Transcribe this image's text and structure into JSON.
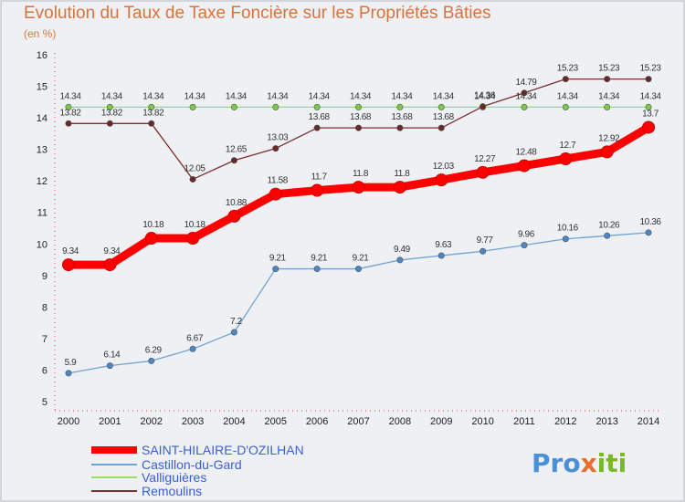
{
  "title": "Evolution du Taux de Taxe Foncière sur les Propriétés Bâties",
  "subtitle": "(en %)",
  "logo": {
    "part1": "Pro",
    "part2": "x",
    "part3": "iti"
  },
  "chart_data": {
    "type": "line",
    "x": [
      "2000",
      "2001",
      "2002",
      "2003",
      "2004",
      "2005",
      "2006",
      "2007",
      "2008",
      "2009",
      "2010",
      "2011",
      "2012",
      "2013",
      "2014"
    ],
    "ylim": [
      5,
      16
    ],
    "yticks": [
      5,
      6,
      7,
      8,
      9,
      10,
      11,
      12,
      13,
      14,
      15,
      16
    ],
    "grid": false,
    "legend_position": "bottom-left",
    "series": [
      {
        "name": "SAINT-HILAIRE-D'OZILHAN",
        "color": "#ff0000",
        "style": "thick",
        "values": [
          9.34,
          9.34,
          10.18,
          10.18,
          10.88,
          11.58,
          11.7,
          11.8,
          11.8,
          12.03,
          12.27,
          12.48,
          12.7,
          12.92,
          13.7
        ],
        "labels": [
          "9.34",
          "9.34",
          "10.18",
          "10.18",
          "10.88",
          "11.58",
          "11.7",
          "11.8",
          "11.8",
          "12.03",
          "12.27",
          "12.48",
          "12.7",
          "12.92",
          "13.7"
        ]
      },
      {
        "name": "Castillon-du-Gard",
        "color": "#6fa3d4",
        "marker": "#4a86c8",
        "values": [
          5.9,
          6.14,
          6.29,
          6.67,
          7.2,
          9.21,
          9.21,
          9.21,
          9.49,
          9.63,
          9.77,
          9.96,
          10.16,
          10.26,
          10.36
        ],
        "labels": [
          "5.9",
          "6.14",
          "6.29",
          "6.67",
          "7.2",
          "9.21",
          "9.21",
          "9.21",
          "9.49",
          "9.63",
          "9.77",
          "9.96",
          "10.16",
          "10.26",
          "10.36"
        ]
      },
      {
        "name": "Valliguières",
        "color": "#99dd66",
        "marker": "#77cc44",
        "values": [
          14.34,
          14.34,
          14.34,
          14.34,
          14.34,
          14.34,
          14.34,
          14.34,
          14.34,
          14.34,
          14.34,
          14.34,
          14.34,
          14.34,
          14.34
        ],
        "labels": [
          "14.34",
          "14.34",
          "14.34",
          "14.34",
          "14.34",
          "14.34",
          "14.34",
          "14.34",
          "14.34",
          "14.34",
          "14.34",
          "14.34",
          "14.34",
          "14.34",
          "14.34"
        ]
      },
      {
        "name": "Remoulins",
        "color": "#7a3030",
        "marker": "#6a2828",
        "values": [
          13.82,
          13.82,
          13.82,
          12.05,
          12.65,
          13.03,
          13.68,
          13.68,
          13.68,
          13.68,
          14.36,
          14.79,
          15.23,
          15.23,
          15.23
        ],
        "labels": [
          "13.82",
          "13.82",
          "13.82",
          "12.05",
          "12.65",
          "13.03",
          "13.68",
          "13.68",
          "13.68",
          "13.68",
          "14.36",
          "14.79",
          "15.23",
          "15.23",
          "15.23"
        ]
      }
    ]
  }
}
